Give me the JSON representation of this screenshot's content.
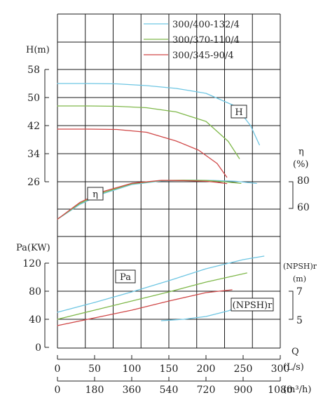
{
  "chart_data": {
    "type": "line",
    "grid": true,
    "legend_placement": "top-right",
    "series_colors": [
      "#6ec6e3",
      "#7fb84a",
      "#d04848"
    ],
    "legend": [
      "300/400-132/4",
      "300/370-110/4",
      "300/345-90/4"
    ],
    "axes": {
      "head": {
        "label": "H(m)",
        "ticks": [
          "58",
          "50",
          "42",
          "34",
          "26"
        ],
        "range": [
          26,
          58
        ]
      },
      "power": {
        "label": "Pa(KW)",
        "ticks": [
          "120",
          "80",
          "40",
          "0"
        ],
        "range": [
          0,
          160
        ]
      },
      "efficiency": {
        "label_symbol": "η",
        "label_unit": "(%)",
        "ticks": [
          "80",
          "60"
        ],
        "range": [
          60,
          80
        ]
      },
      "npsh": {
        "label": "(NPSH)r",
        "label_unit": "(m)",
        "ticks": [
          "7",
          "5"
        ],
        "range": [
          5,
          7
        ]
      },
      "q_ls": {
        "label_q": "Q",
        "label_unit": "(L/s)",
        "ticks": [
          "0",
          "50",
          "100",
          "150",
          "200",
          "250",
          "300"
        ],
        "range": [
          0,
          300
        ]
      },
      "q_m3h": {
        "label_unit": "(m³/h)",
        "ticks": [
          "0",
          "180",
          "360",
          "540",
          "720",
          "900",
          "1080"
        ],
        "range": [
          0,
          1080
        ]
      }
    },
    "curve_labels": {
      "head": "H",
      "efficiency": "η",
      "power": "Pa",
      "npsh": "(NPSH)r"
    },
    "series": [
      {
        "name": "300/400-132/4",
        "head": {
          "x": [
            0,
            40,
            80,
            120,
            160,
            200,
            240,
            260,
            272
          ],
          "y": [
            54,
            54,
            53.9,
            53.4,
            52.6,
            51.2,
            47.5,
            42,
            36.5
          ]
        },
        "efficiency": {
          "x": [
            0,
            30,
            60,
            100,
            140,
            180,
            210,
            240,
            268
          ],
          "y": [
            52.3,
            62.8,
            70.3,
            77,
            79.6,
            80.1,
            79.9,
            79.3,
            77.8
          ]
        },
        "power": {
          "x": [
            0,
            50,
            100,
            150,
            200,
            250,
            278
          ],
          "y": [
            50,
            64,
            79,
            95,
            112,
            125,
            130
          ]
        },
        "npsh": {
          "x": [
            140,
            170,
            200,
            230,
            260
          ],
          "y": [
            4.9,
            5.0,
            5.2,
            5.6,
            6.2
          ]
        }
      },
      {
        "name": "300/370-110/4",
        "head": {
          "x": [
            0,
            40,
            80,
            120,
            160,
            200,
            230,
            245
          ],
          "y": [
            47.6,
            47.6,
            47.5,
            47.1,
            45.9,
            43.2,
            37.5,
            32.6
          ]
        },
        "efficiency": {
          "x": [
            0,
            30,
            60,
            100,
            140,
            170,
            200,
            225,
            247
          ],
          "y": [
            52.3,
            63.5,
            71,
            77.5,
            79.9,
            80.1,
            79.9,
            79,
            77.8
          ]
        },
        "power": {
          "x": [
            0,
            50,
            100,
            150,
            200,
            255
          ],
          "y": [
            40,
            53,
            66,
            79,
            93,
            106
          ]
        },
        "npsh": {
          "x": [],
          "y": []
        }
      },
      {
        "name": "300/345-90/4",
        "head": {
          "x": [
            0,
            40,
            80,
            120,
            160,
            190,
            215,
            228
          ],
          "y": [
            41,
            41,
            40.9,
            40.1,
            37.6,
            35,
            31.2,
            27.3
          ]
        },
        "efficiency": {
          "x": [
            0,
            30,
            60,
            100,
            140,
            170,
            200,
            215,
            228
          ],
          "y": [
            52.3,
            64.2,
            71.8,
            77.9,
            80,
            79.8,
            79.3,
            78.6,
            77.7
          ]
        },
        "power": {
          "x": [
            0,
            50,
            100,
            150,
            200,
            235
          ],
          "y": [
            31,
            42,
            53,
            66,
            78,
            82
          ]
        },
        "npsh": {
          "x": [],
          "y": []
        }
      }
    ]
  }
}
